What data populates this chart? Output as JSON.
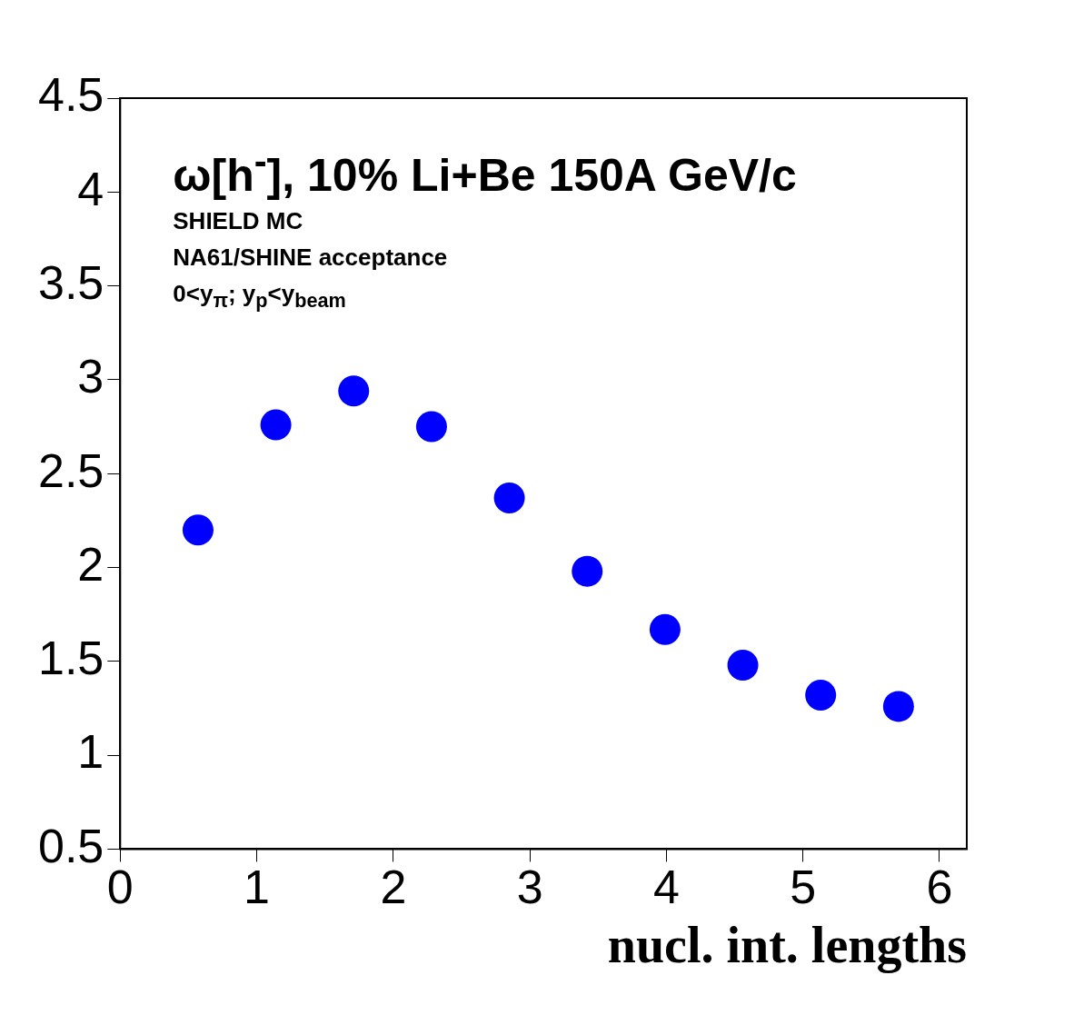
{
  "chart_data": {
    "type": "scatter",
    "title": "ω[h$^{-}$], 10% Li+Be 150A GeV/c",
    "xlabel": "nucl. int. lengths",
    "annotations": [
      "SHIELD MC",
      "NA61/SHINE acceptance",
      "0<y$_{π}$; y$_{p}$<y$_{beam}$"
    ],
    "x": [
      0.57,
      1.14,
      1.71,
      2.28,
      2.85,
      3.42,
      3.99,
      4.56,
      5.13,
      5.7
    ],
    "series": [
      {
        "color": "#0000ff",
        "values": [
          2.2,
          2.76,
          2.94,
          2.75,
          2.37,
          1.98,
          1.67,
          1.48,
          1.32,
          1.26
        ]
      }
    ],
    "xlim": [
      0,
      6.2
    ],
    "ylim": [
      0.5,
      4.5
    ],
    "xticks": [
      0,
      1,
      2,
      3,
      4,
      5,
      6
    ],
    "yticks": [
      0.5,
      1,
      1.5,
      2,
      2.5,
      3,
      3.5,
      4,
      4.5
    ],
    "grid": false,
    "legend": false,
    "marker": "circle"
  }
}
